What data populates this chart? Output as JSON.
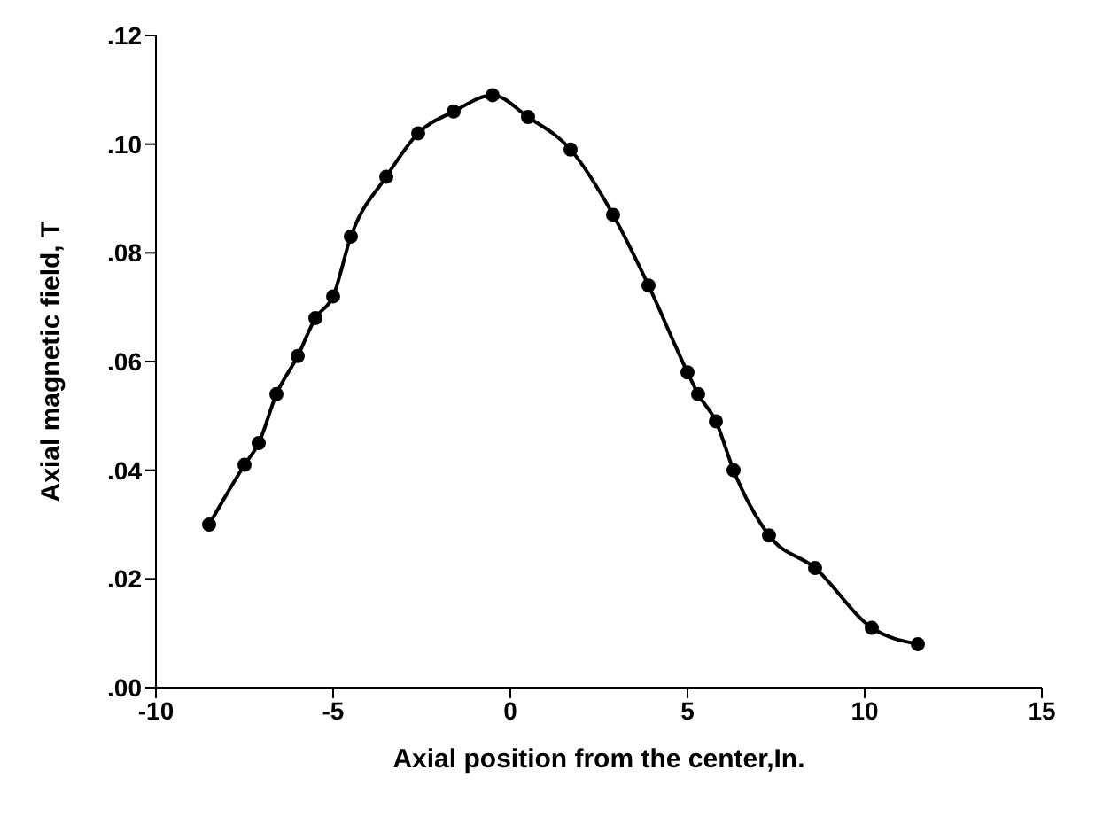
{
  "chart_data": {
    "type": "line",
    "xlabel": "Axial position from the center,In.",
    "ylabel": "Axial magnetic field, T",
    "xlim": [
      -10,
      15
    ],
    "xticks": [
      -10,
      -5,
      0,
      5,
      10,
      15
    ],
    "ylim": [
      0,
      0.12
    ],
    "yticks": [
      {
        "value": 0,
        "label": ".00"
      },
      {
        "value": 0.02,
        "label": ".02"
      },
      {
        "value": 0.04,
        "label": ".04"
      },
      {
        "value": 0.06,
        "label": ".06"
      },
      {
        "value": 0.08,
        "label": ".08"
      },
      {
        "value": 0.1,
        "label": ".10"
      },
      {
        "value": 0.12,
        "label": ".12"
      }
    ],
    "marker": "circle",
    "line_style": "solid",
    "series": [
      {
        "color": "#000000",
        "x": [
          -8.5,
          -7.5,
          -7.1,
          -6.6,
          -6.0,
          -5.5,
          -5.0,
          -4.5,
          -3.5,
          -2.6,
          -1.6,
          -0.5,
          0.5,
          1.7,
          2.9,
          3.9,
          5.0,
          5.3,
          5.8,
          6.3,
          7.3,
          8.6,
          10.2,
          11.5
        ],
        "values": [
          0.03,
          0.041,
          0.045,
          0.054,
          0.061,
          0.068,
          0.072,
          0.083,
          0.094,
          0.102,
          0.106,
          0.109,
          0.105,
          0.099,
          0.087,
          0.074,
          0.058,
          0.054,
          0.049,
          0.04,
          0.028,
          0.022,
          0.011,
          0.008
        ]
      }
    ]
  }
}
